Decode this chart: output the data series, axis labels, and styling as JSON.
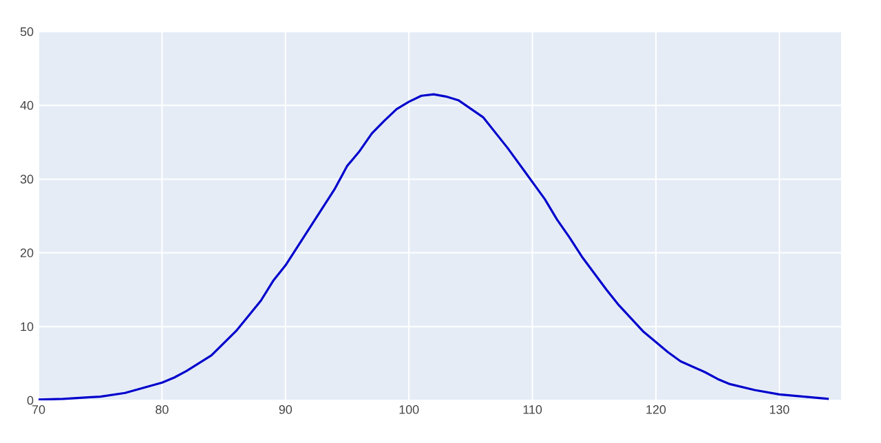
{
  "chart_data": {
    "type": "line",
    "xlim": [
      70,
      135
    ],
    "ylim": [
      0,
      50
    ],
    "xticks": [
      70,
      80,
      90,
      100,
      110,
      120,
      130
    ],
    "yticks": [
      0,
      10,
      20,
      30,
      40,
      50
    ],
    "grid": true,
    "x": [
      70,
      72,
      74,
      75,
      77,
      80,
      81,
      82,
      84,
      86,
      88,
      89,
      90,
      92,
      94,
      95,
      96,
      97,
      98,
      99,
      100,
      101,
      102,
      103,
      104,
      106,
      108,
      110,
      111,
      112,
      113,
      114,
      116,
      117,
      118,
      119,
      120,
      121,
      122,
      124,
      125,
      126,
      128,
      130,
      132,
      134
    ],
    "series": [
      {
        "color": "#0000cc",
        "values": [
          0.1,
          0.2,
          0.4,
          0.5,
          1.0,
          2.4,
          3.1,
          4.0,
          6.1,
          9.4,
          13.5,
          16.2,
          18.3,
          23.5,
          28.7,
          31.8,
          33.8,
          36.2,
          37.9,
          39.5,
          40.5,
          41.3,
          41.5,
          41.2,
          40.7,
          38.4,
          34.2,
          29.6,
          27.3,
          24.5,
          22.1,
          19.5,
          15.0,
          12.9,
          11.1,
          9.3,
          7.9,
          6.5,
          5.3,
          3.8,
          2.9,
          2.2,
          1.4,
          0.8,
          0.5,
          0.2
        ]
      }
    ]
  }
}
